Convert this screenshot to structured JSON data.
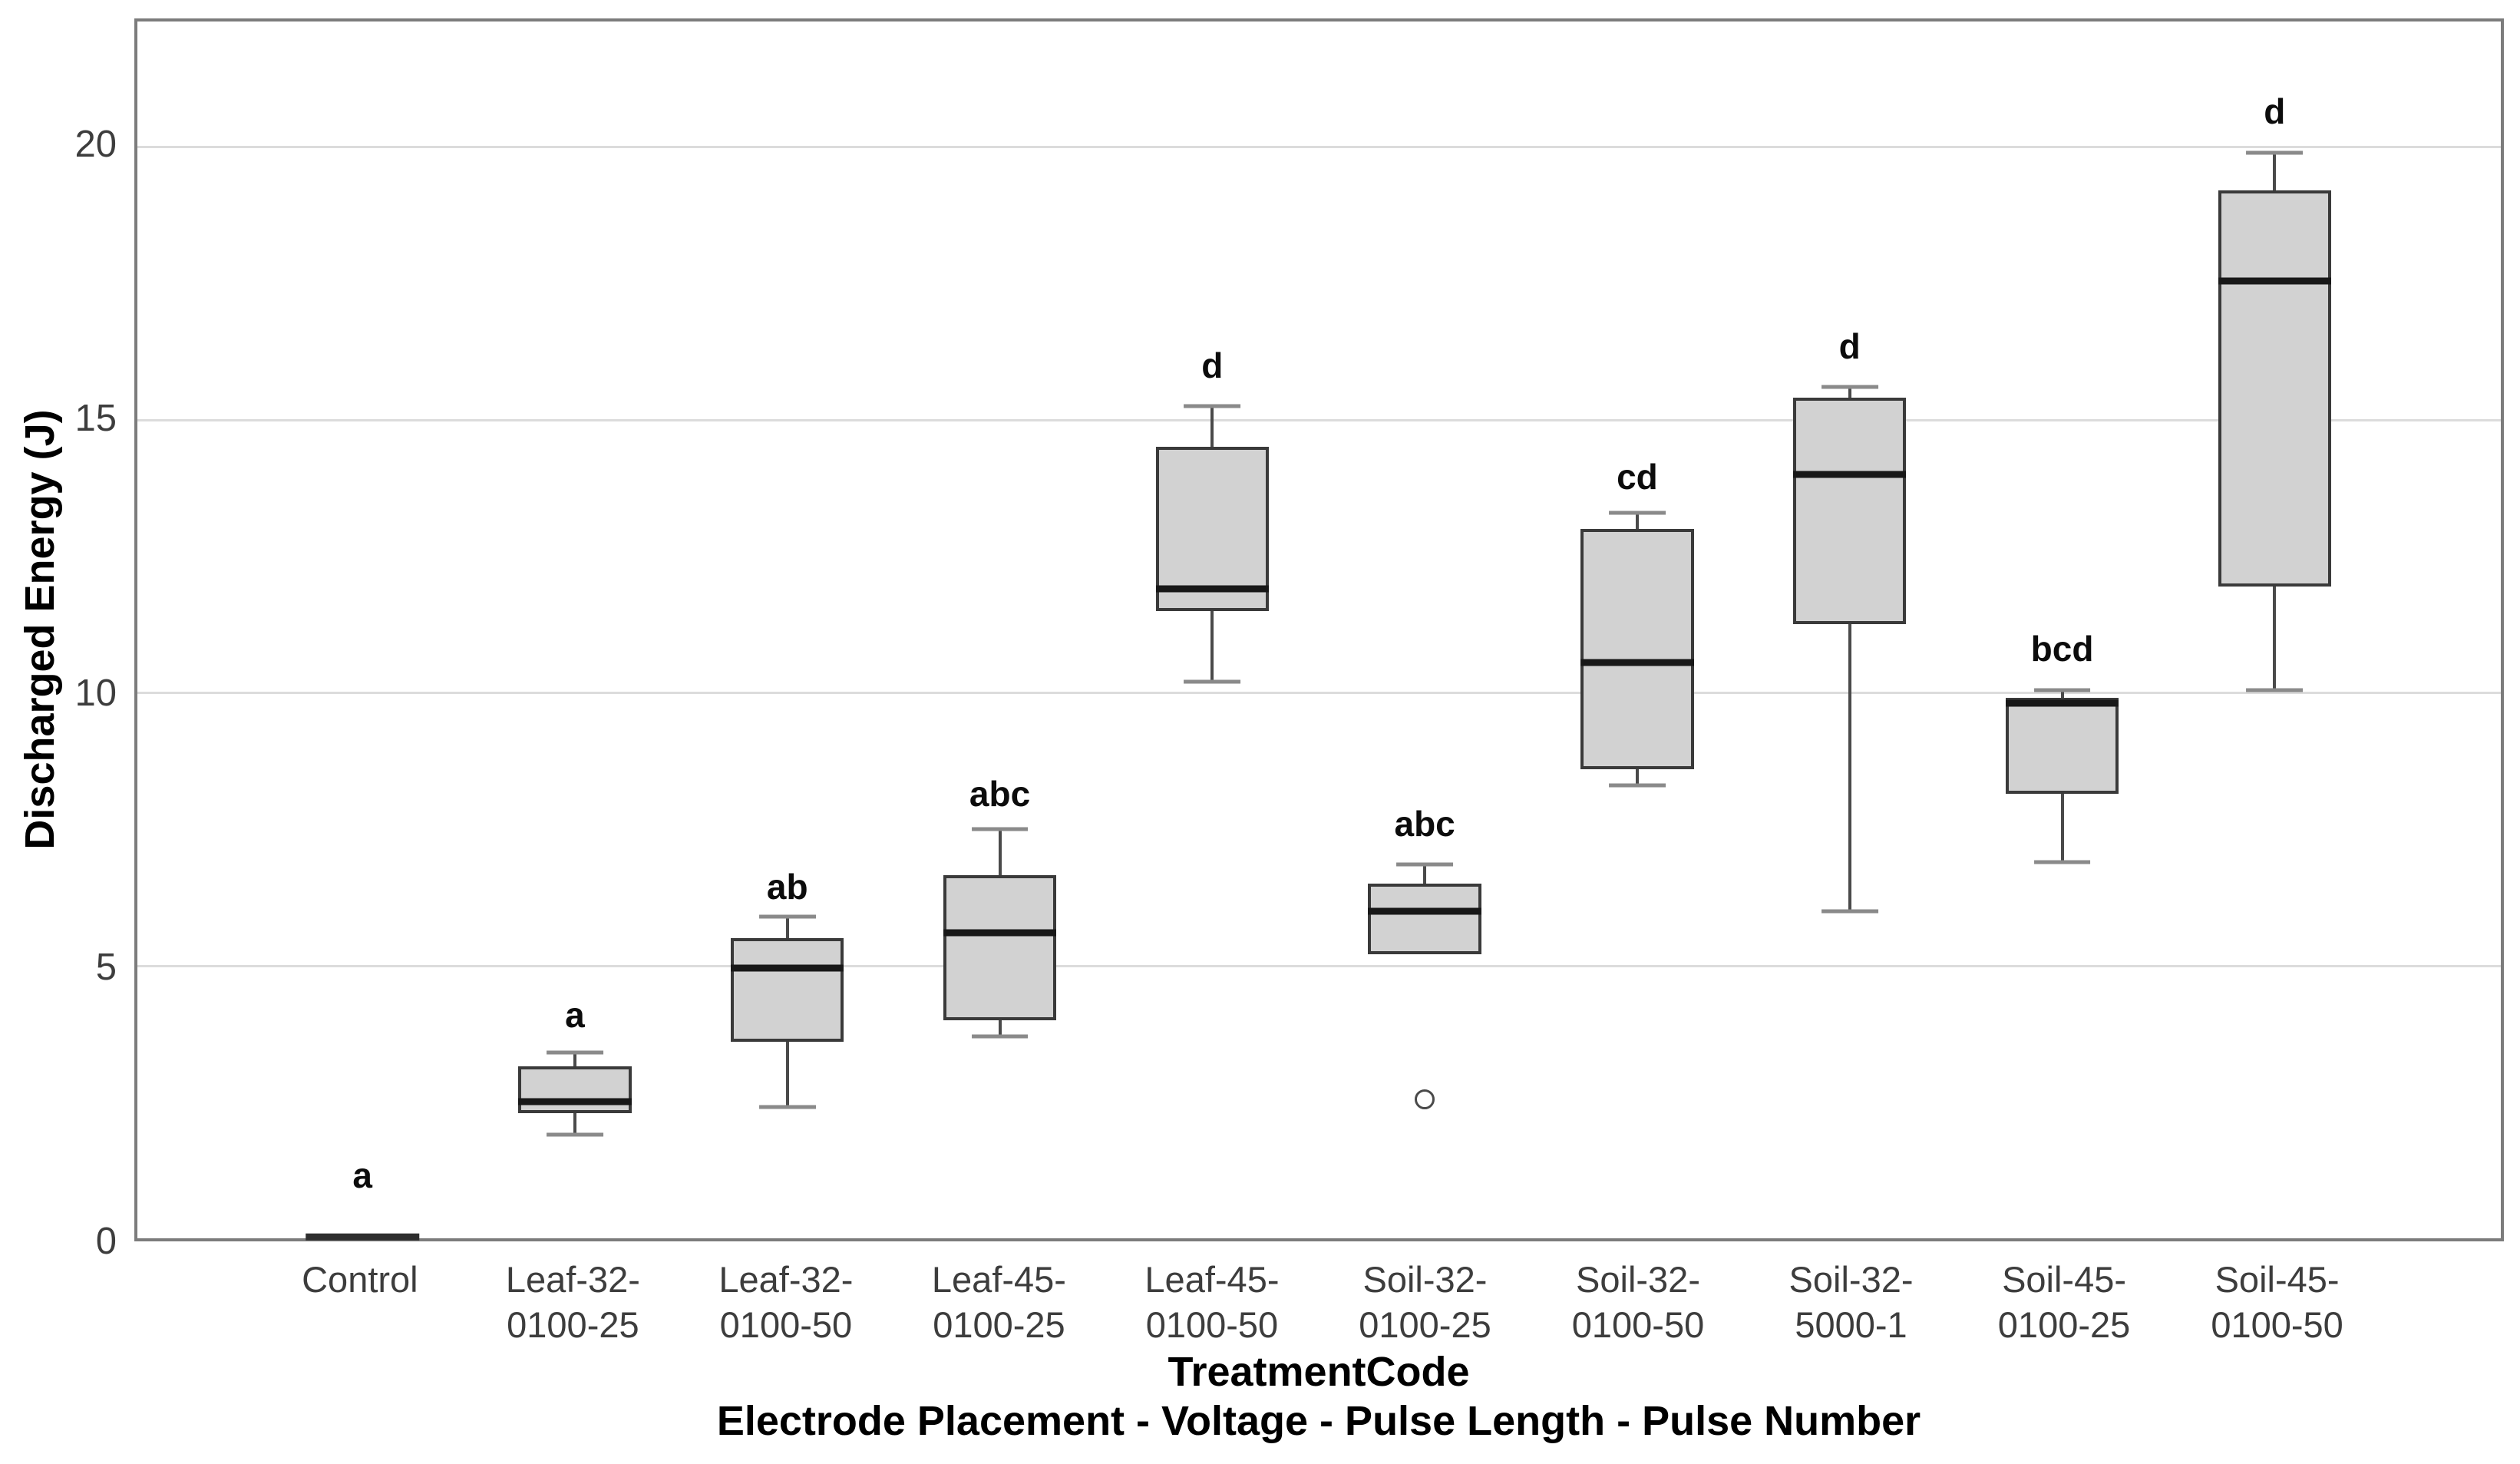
{
  "y_axis": {
    "title": "Discharged Energy (J)",
    "ticks": [
      0,
      5,
      10,
      15,
      20
    ],
    "max": 22.3
  },
  "x_axis": {
    "title_line1": "TreatmentCode",
    "title_line2": "Electrode Placement - Voltage - Pulse Length - Pulse Number"
  },
  "style": {
    "box_fill": "#d2d2d2",
    "box_border": "#3a3a3a",
    "median_color": "#181818",
    "whisker_color": "#4a4a4a",
    "cap_color": "#8a8a8a",
    "gridline_color": "#dcdcdc",
    "frame_color": "#7c7c7c",
    "tick_text_color": "#3d3d3d"
  },
  "chart_data": {
    "type": "boxplot",
    "title": "",
    "xlabel": "TreatmentCode",
    "xlabel_sub": "Electrode Placement - Voltage - Pulse Length - Pulse Number",
    "ylabel": "Discharged Energy (J)",
    "ylim": [
      0,
      22.3
    ],
    "grid": "horizontal-gridlines-at-5-unit-intervals",
    "legend": "none",
    "categories": [
      "Control",
      "Leaf-32-0100-25",
      "Leaf-32-0100-50",
      "Leaf-45-0100-25",
      "Leaf-45-0100-50",
      "Soil-32-0100-25",
      "Soil-32-0100-50",
      "Soil-32-5000-1",
      "Soil-45-0100-25",
      "Soil-45-0100-50"
    ],
    "series": [
      {
        "label_line1": "Control",
        "label_line2": "",
        "letter": "a",
        "letter_y": 1.15,
        "collapsed": true,
        "whisker_low": 0,
        "q1": 0,
        "median": 0,
        "q3": 0,
        "whisker_high": 0,
        "outliers": []
      },
      {
        "label_line1": "Leaf-32-",
        "label_line2": "0100-25",
        "letter": "a",
        "letter_y": 4.1,
        "collapsed": false,
        "whisker_low": 1.9,
        "q1": 2.3,
        "median": 2.5,
        "q3": 3.15,
        "whisker_high": 3.4,
        "outliers": []
      },
      {
        "label_line1": "Leaf-32-",
        "label_line2": "0100-50",
        "letter": "ab",
        "letter_y": 6.45,
        "collapsed": false,
        "whisker_low": 2.4,
        "q1": 3.6,
        "median": 4.95,
        "q3": 5.5,
        "whisker_high": 5.9,
        "outliers": []
      },
      {
        "label_line1": "Leaf-45-",
        "label_line2": "0100-25",
        "letter": "abc",
        "letter_y": 8.15,
        "collapsed": false,
        "whisker_low": 3.7,
        "q1": 4.0,
        "median": 5.6,
        "q3": 6.65,
        "whisker_high": 7.5,
        "outliers": []
      },
      {
        "label_line1": "Leaf-45-",
        "label_line2": "0100-50",
        "letter": "d",
        "letter_y": 16.0,
        "collapsed": false,
        "whisker_low": 10.2,
        "q1": 11.5,
        "median": 11.9,
        "q3": 14.5,
        "whisker_high": 15.25,
        "outliers": []
      },
      {
        "label_line1": "Soil-32-",
        "label_line2": "0100-25",
        "letter": "abc",
        "letter_y": 7.6,
        "collapsed": false,
        "whisker_low": 5.2,
        "q1": 5.2,
        "median": 6.0,
        "q3": 6.5,
        "whisker_high": 6.85,
        "outliers": [
          2.55
        ]
      },
      {
        "label_line1": "Soil-32-",
        "label_line2": "0100-50",
        "letter": "cd",
        "letter_y": 13.95,
        "collapsed": false,
        "whisker_low": 8.3,
        "q1": 8.6,
        "median": 10.55,
        "q3": 13.0,
        "whisker_high": 13.3,
        "outliers": []
      },
      {
        "label_line1": "Soil-32-",
        "label_line2": "5000-1",
        "letter": "d",
        "letter_y": 16.35,
        "collapsed": false,
        "whisker_low": 6.0,
        "q1": 11.25,
        "median": 14.0,
        "q3": 15.4,
        "whisker_high": 15.6,
        "outliers": []
      },
      {
        "label_line1": "Soil-45-",
        "label_line2": "0100-25",
        "letter": "bcd",
        "letter_y": 10.8,
        "collapsed": false,
        "whisker_low": 6.9,
        "q1": 8.15,
        "median": 9.8,
        "q3": 9.9,
        "whisker_high": 10.05,
        "outliers": []
      },
      {
        "label_line1": "Soil-45-",
        "label_line2": "0100-50",
        "letter": "d",
        "letter_y": 20.65,
        "collapsed": false,
        "whisker_low": 10.05,
        "q1": 11.95,
        "median": 17.55,
        "q3": 19.2,
        "whisker_high": 19.9,
        "outliers": []
      }
    ]
  }
}
